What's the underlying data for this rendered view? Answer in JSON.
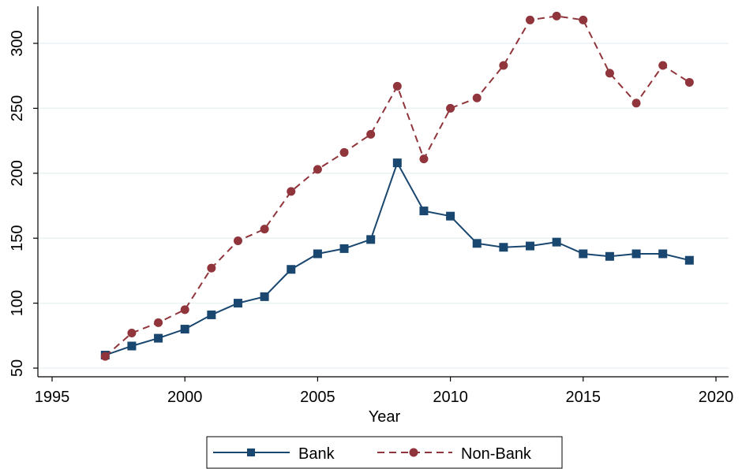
{
  "chart_data": {
    "type": "line",
    "title": "",
    "xlabel": "Year",
    "ylabel": "",
    "xlim": [
      1995,
      2020
    ],
    "ylim": [
      50,
      320
    ],
    "x_ticks": [
      1995,
      2000,
      2005,
      2010,
      2015,
      2020
    ],
    "y_ticks": [
      50,
      100,
      150,
      200,
      250,
      300
    ],
    "x_tick_labels": [
      "1995",
      "2000",
      "2005",
      "2010",
      "2015",
      "2020"
    ],
    "y_tick_labels": [
      "50",
      "100",
      "150",
      "200",
      "250",
      "300"
    ],
    "grid": "horizontal",
    "legend_position": "bottom",
    "x": [
      1997,
      1998,
      1999,
      2000,
      2001,
      2002,
      2003,
      2004,
      2005,
      2006,
      2007,
      2008,
      2009,
      2010,
      2011,
      2012,
      2013,
      2014,
      2015,
      2016,
      2017,
      2018,
      2019
    ],
    "series": [
      {
        "name": "Bank",
        "color": "#1a476f",
        "line_style": "solid",
        "marker": "square",
        "values": [
          60,
          67,
          73,
          80,
          91,
          100,
          105,
          126,
          138,
          142,
          149,
          208,
          171,
          167,
          146,
          143,
          144,
          147,
          138,
          136,
          138,
          138,
          133
        ]
      },
      {
        "name": "Non-Bank",
        "color": "#90353b",
        "line_style": "dashed",
        "marker": "circle",
        "values": [
          59,
          77,
          85,
          95,
          127,
          148,
          157,
          186,
          203,
          216,
          230,
          267,
          211,
          250,
          258,
          283,
          318,
          321,
          318,
          277,
          254,
          283,
          270
        ]
      }
    ]
  }
}
